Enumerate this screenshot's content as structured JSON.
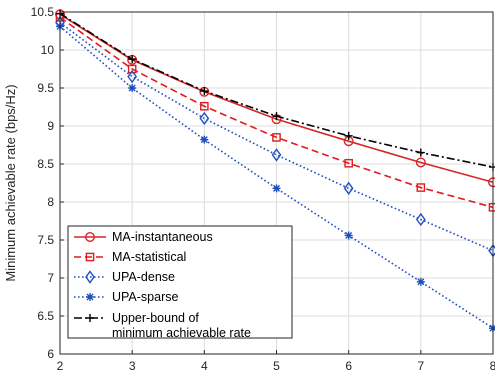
{
  "chart_data": {
    "type": "line",
    "title": "",
    "xlabel": "",
    "ylabel": "Minimum achievable rate (bps/Hz)",
    "xlim": [
      2,
      8
    ],
    "ylim": [
      6,
      10.5
    ],
    "x": [
      2,
      3,
      4,
      5,
      6,
      7,
      8
    ],
    "x_ticks": [
      "2",
      "3",
      "4",
      "5",
      "6",
      "7",
      "8"
    ],
    "y_ticks": [
      "6",
      "6.5",
      "7",
      "7.5",
      "8",
      "8.5",
      "9",
      "9.5",
      "10",
      "10.5"
    ],
    "y_tick_values": [
      6,
      6.5,
      7,
      7.5,
      8,
      8.5,
      9,
      9.5,
      10,
      10.5
    ],
    "grid": true,
    "legend_position": "bottom-left",
    "series": [
      {
        "name": "MA-instantaneous",
        "values": [
          10.47,
          9.87,
          9.45,
          9.09,
          8.8,
          8.52,
          8.26
        ],
        "color": "#d62728",
        "dash": "solid",
        "marker": "circle"
      },
      {
        "name": "MA-statistical",
        "values": [
          10.43,
          9.75,
          9.26,
          8.85,
          8.51,
          8.19,
          7.93
        ],
        "color": "#e31a1c",
        "dash": "dashed",
        "marker": "square"
      },
      {
        "name": "UPA-dense",
        "values": [
          10.36,
          9.65,
          9.1,
          8.62,
          8.18,
          7.77,
          7.36
        ],
        "color": "#1f4fbf",
        "dash": "dotted",
        "marker": "diamond"
      },
      {
        "name": "UPA-sparse",
        "values": [
          10.31,
          9.5,
          8.82,
          8.18,
          7.56,
          6.95,
          6.34
        ],
        "color": "#1f4fbf",
        "dash": "dotted",
        "marker": "asterisk"
      },
      {
        "name": "Upper-bound of\nminimum achievable rate",
        "values": [
          10.48,
          9.88,
          9.46,
          9.13,
          8.87,
          8.65,
          8.46
        ],
        "color": "#000000",
        "dash": "dashdot",
        "marker": "plus"
      }
    ]
  }
}
